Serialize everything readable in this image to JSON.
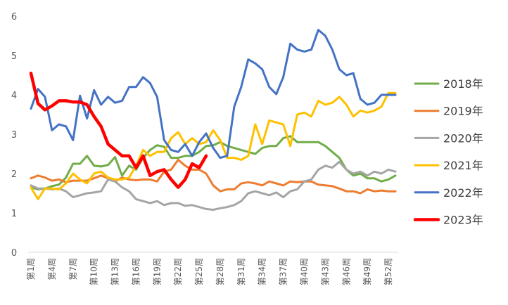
{
  "chart_data": {
    "type": "line",
    "title": "",
    "xlabel": "",
    "ylabel": "",
    "ylim": [
      0,
      6
    ],
    "yticks": [
      0,
      1,
      2,
      3,
      4,
      5,
      6
    ],
    "grid": false,
    "legend_position": "right",
    "categories": [
      "第1周",
      "第2周",
      "第3周",
      "第4周",
      "第5周",
      "第6周",
      "第7周",
      "第8周",
      "第9周",
      "第10周",
      "第11周",
      "第12周",
      "第13周",
      "第14周",
      "第15周",
      "第16周",
      "第17周",
      "第18周",
      "第19周",
      "第20周",
      "第21周",
      "第22周",
      "第23周",
      "第24周",
      "第25周",
      "第26周",
      "第27周",
      "第28周",
      "第29周",
      "第30周",
      "第31周",
      "第32周",
      "第33周",
      "第34周",
      "第35周",
      "第36周",
      "第37周",
      "第38周",
      "第39周",
      "第40周",
      "第41周",
      "第42周",
      "第43周",
      "第44周",
      "第45周",
      "第46周",
      "第47周",
      "第48周",
      "第49周",
      "第50周",
      "第51周",
      "第52周",
      "第53周"
    ],
    "x_tick_labels": [
      "第1周",
      "第4周",
      "第7周",
      "第10周",
      "第13周",
      "第16周",
      "第19周",
      "第22周",
      "第25周",
      "第28周",
      "第31周",
      "第34周",
      "第37周",
      "第40周",
      "第43周",
      "第46周",
      "第49周",
      "第52周"
    ],
    "series": [
      {
        "name": "2018年",
        "color": "#70AD47",
        "width": 3,
        "values": [
          1.65,
          1.6,
          1.62,
          1.68,
          1.72,
          1.9,
          2.25,
          2.25,
          2.45,
          2.2,
          2.18,
          2.22,
          2.42,
          1.95,
          2.2,
          2.1,
          2.4,
          2.6,
          2.72,
          2.68,
          2.4,
          2.4,
          2.45,
          2.45,
          2.55,
          2.7,
          2.72,
          2.8,
          2.7,
          2.65,
          2.6,
          2.55,
          2.5,
          2.65,
          2.7,
          2.7,
          2.9,
          2.95,
          2.8,
          2.8,
          2.8,
          2.8,
          2.7,
          2.55,
          2.4,
          2.1,
          1.95,
          2.0,
          1.88,
          1.88,
          1.8,
          1.85,
          1.95
        ]
      },
      {
        "name": "2019年",
        "color": "#ED7D31",
        "width": 3,
        "values": [
          1.88,
          1.95,
          1.9,
          1.82,
          1.85,
          1.78,
          1.82,
          1.82,
          1.82,
          1.88,
          1.95,
          1.88,
          1.8,
          1.9,
          1.85,
          1.83,
          1.85,
          1.85,
          1.8,
          2.05,
          2.1,
          2.35,
          2.2,
          2.1,
          2.1,
          2.0,
          1.7,
          1.55,
          1.6,
          1.6,
          1.75,
          1.78,
          1.75,
          1.7,
          1.8,
          1.75,
          1.7,
          1.8,
          1.78,
          1.8,
          1.8,
          1.72,
          1.7,
          1.68,
          1.62,
          1.55,
          1.55,
          1.5,
          1.6,
          1.55,
          1.57,
          1.55,
          1.55
        ]
      },
      {
        "name": "2020年",
        "color": "#A5A5A5",
        "width": 3,
        "values": [
          1.7,
          1.62,
          1.62,
          1.6,
          1.62,
          1.55,
          1.4,
          1.45,
          1.5,
          1.52,
          1.55,
          1.85,
          1.8,
          1.65,
          1.55,
          1.35,
          1.3,
          1.25,
          1.3,
          1.2,
          1.25,
          1.25,
          1.18,
          1.2,
          1.15,
          1.1,
          1.08,
          1.12,
          1.15,
          1.2,
          1.3,
          1.5,
          1.55,
          1.5,
          1.45,
          1.52,
          1.4,
          1.55,
          1.6,
          1.8,
          1.85,
          2.1,
          2.2,
          2.15,
          2.3,
          2.1,
          2.0,
          2.05,
          1.95,
          2.05,
          2.0,
          2.1,
          2.05
        ]
      },
      {
        "name": "2021年",
        "color": "#FFC000",
        "width": 3,
        "values": [
          1.65,
          1.35,
          1.62,
          1.62,
          1.6,
          1.75,
          2.0,
          1.85,
          1.75,
          2.0,
          2.05,
          1.9,
          1.85,
          1.85,
          1.9,
          2.2,
          2.6,
          2.45,
          2.55,
          2.55,
          2.9,
          3.05,
          2.75,
          2.9,
          2.75,
          2.8,
          3.1,
          2.85,
          2.4,
          2.4,
          2.35,
          2.45,
          3.25,
          2.75,
          3.35,
          3.3,
          3.25,
          2.7,
          3.5,
          3.55,
          3.45,
          3.85,
          3.75,
          3.8,
          3.95,
          3.75,
          3.45,
          3.6,
          3.55,
          3.6,
          3.7,
          4.05,
          4.05
        ]
      },
      {
        "name": "2022年",
        "color": "#4472C4",
        "width": 3,
        "values": [
          3.65,
          4.15,
          3.95,
          3.1,
          3.25,
          3.2,
          2.85,
          3.98,
          3.4,
          4.12,
          3.75,
          3.95,
          3.8,
          3.85,
          4.2,
          4.2,
          4.45,
          4.3,
          3.95,
          2.85,
          2.6,
          2.55,
          2.75,
          2.45,
          2.8,
          3.02,
          2.65,
          2.4,
          2.45,
          3.7,
          4.2,
          4.9,
          4.8,
          4.65,
          4.2,
          4.02,
          4.45,
          5.3,
          5.15,
          5.1,
          5.15,
          5.65,
          5.5,
          5.15,
          4.65,
          4.5,
          4.55,
          3.9,
          3.75,
          3.8,
          4.0,
          4.0,
          4.0
        ]
      },
      {
        "name": "2023年",
        "color": "#FF0000",
        "width": 4.5,
        "values": [
          4.55,
          3.78,
          3.62,
          3.72,
          3.85,
          3.85,
          3.82,
          3.82,
          3.75,
          3.45,
          3.2,
          2.75,
          2.6,
          2.45,
          2.45,
          2.15,
          2.45,
          1.95,
          2.05,
          2.1,
          1.85,
          1.65,
          1.85,
          2.25,
          2.15,
          2.45,
          null,
          null,
          null,
          null,
          null,
          null,
          null,
          null,
          null,
          null,
          null,
          null,
          null,
          null,
          null,
          null,
          null,
          null,
          null,
          null,
          null,
          null,
          null,
          null,
          null,
          null,
          null
        ]
      }
    ]
  }
}
